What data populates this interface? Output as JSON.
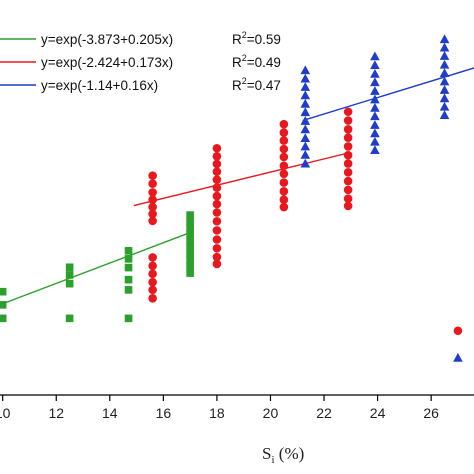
{
  "chart_data": {
    "type": "scatter",
    "xlabel_main": "S",
    "xlabel_sub": "i",
    "xlabel_unit": " (%)",
    "xlim": [
      9.9,
      27.6
    ],
    "ylim": [
      0,
      1
    ],
    "x_ticks": [
      10,
      12,
      14,
      16,
      18,
      20,
      22,
      24,
      26
    ],
    "x_tick_labels": [
      "10",
      "12",
      "14",
      "16",
      "18",
      "20",
      "22",
      "24",
      "26"
    ],
    "series": [
      {
        "color": "#2ca02c",
        "marker": "square",
        "fit": {
          "label": "y=exp(-3.873+0.205x)",
          "r2_main": "R",
          "r2_sup": "2",
          "r2_value": "=0.59",
          "x_range": [
            10.0,
            17.0
          ],
          "y_range": [
            0.25,
            0.445
          ]
        },
        "groups": [
          {
            "x": 10.0,
            "y": [
              0.21,
              0.247,
              0.283
            ]
          },
          {
            "x": 12.5,
            "y": [
              0.21,
              0.305,
              0.329,
              0.35
            ]
          },
          {
            "x": 14.7,
            "y": [
              0.21,
              0.288,
              0.316,
              0.349,
              0.373,
              0.395
            ]
          },
          {
            "x": 17.0,
            "y": [
              0.334,
              0.352,
              0.37,
              0.388,
              0.405,
              0.422,
              0.44,
              0.458,
              0.475,
              0.493
            ]
          }
        ]
      },
      {
        "color": "#e8191e",
        "marker": "circle",
        "fit": {
          "label": "y=exp(-2.424+0.173x)",
          "r2_main": "R",
          "r2_sup": "2",
          "r2_value": "=0.49",
          "x_range": [
            14.9,
            22.9
          ],
          "y_range": [
            0.519,
            0.663
          ]
        },
        "groups": [
          {
            "x": 15.6,
            "y": [
              0.265,
              0.288,
              0.309,
              0.332,
              0.354,
              0.377,
              0.477,
              0.496,
              0.515,
              0.535,
              0.555,
              0.579,
              0.601
            ]
          },
          {
            "x": 18.0,
            "y": [
              0.359,
              0.378,
              0.402,
              0.426,
              0.451,
              0.476,
              0.5,
              0.523,
              0.545,
              0.568,
              0.59,
              0.612,
              0.633,
              0.654,
              0.676
            ]
          },
          {
            "x": 20.5,
            "y": [
              0.515,
              0.535,
              0.558,
              0.582,
              0.606,
              0.628,
              0.652,
              0.674,
              0.697,
              0.719,
              0.742
            ]
          },
          {
            "x": 22.9,
            "y": [
              0.518,
              0.538,
              0.562,
              0.586,
              0.61,
              0.634,
              0.657,
              0.681,
              0.705,
              0.728,
              0.752,
              0.776
            ]
          },
          {
            "x": 27.0,
            "y": [
              0.176
            ]
          }
        ]
      },
      {
        "color": "#1f3dc9",
        "marker": "triangle",
        "fit": {
          "label": "y=exp(-1.14+0.16x)",
          "r2_main": "R",
          "r2_sup": "2",
          "r2_value": "=0.47",
          "x_range": [
            21.2,
            27.6
          ],
          "y_range": [
            0.752,
            0.896
          ]
        },
        "groups": [
          {
            "x": 21.3,
            "y": [
              0.633,
              0.657,
              0.68,
              0.703,
              0.727,
              0.75,
              0.774,
              0.797,
              0.82,
              0.843,
              0.866,
              0.889
            ]
          },
          {
            "x": 23.9,
            "y": [
              0.67,
              0.693,
              0.716,
              0.739,
              0.763,
              0.786,
              0.809,
              0.832,
              0.856,
              0.879,
              0.903,
              0.927
            ]
          },
          {
            "x": 26.5,
            "y": [
              0.766,
              0.789,
              0.812,
              0.835,
              0.858,
              0.881,
              0.904,
              0.928,
              0.951,
              0.974
            ]
          },
          {
            "x": 27.0,
            "y": [
              0.101
            ]
          }
        ]
      }
    ],
    "legend_position": "top-left"
  }
}
